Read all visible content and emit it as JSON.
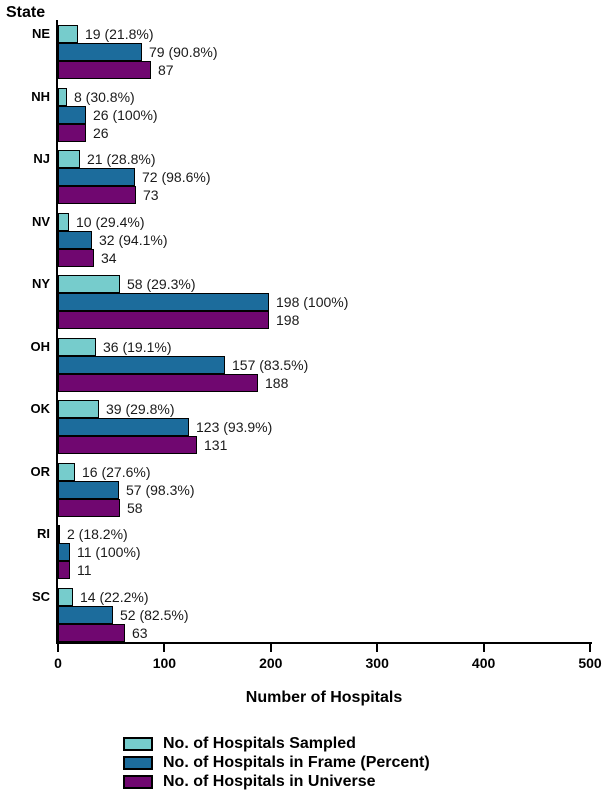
{
  "chart_data": {
    "type": "bar",
    "orientation": "horizontal",
    "y_axis_title": "State",
    "xlabel": "Number of Hospitals",
    "xlim": [
      0,
      500
    ],
    "x_ticks": [
      "0",
      "100",
      "200",
      "300",
      "400",
      "500"
    ],
    "grid": false,
    "legend_position": "bottom",
    "categories": [
      "NE",
      "NH",
      "NJ",
      "NV",
      "NY",
      "OH",
      "OK",
      "OR",
      "RI",
      "SC"
    ],
    "series": [
      {
        "key": "sampled",
        "name": "No. of Hospitals Sampled",
        "color": "#76CCCC",
        "values": [
          19,
          8,
          21,
          10,
          58,
          36,
          39,
          16,
          2,
          14
        ],
        "labels": [
          "19 (21.8%)",
          "8 (30.8%)",
          "21 (28.8%)",
          "10 (29.4%)",
          "58 (29.3%)",
          "36 (19.1%)",
          "39 (29.8%)",
          "16 (27.6%)",
          "2 (18.2%)",
          "14 (22.2%)"
        ]
      },
      {
        "key": "frame",
        "name": "No. of Hospitals in Frame (Percent)",
        "color": "#1C6C9C",
        "values": [
          79,
          26,
          72,
          32,
          198,
          157,
          123,
          57,
          11,
          52
        ],
        "labels": [
          "79 (90.8%)",
          "26 (100%)",
          "72 (98.6%)",
          "32 (94.1%)",
          "198 (100%)",
          "157 (83.5%)",
          "123 (93.9%)",
          "57 (98.3%)",
          "11 (100%)",
          "52 (82.5%)"
        ]
      },
      {
        "key": "universe",
        "name": "No. of Hospitals in Universe",
        "color": "#700770",
        "values": [
          87,
          26,
          73,
          34,
          198,
          188,
          131,
          58,
          11,
          63
        ],
        "labels": [
          "87",
          "26",
          "73",
          "34",
          "198",
          "188",
          "131",
          "58",
          "11",
          "63"
        ]
      }
    ],
    "colors": {
      "background": "#FFFFFF",
      "axis": "#000000",
      "text": "#000000",
      "value_label_text": "#1A1A1A"
    }
  }
}
